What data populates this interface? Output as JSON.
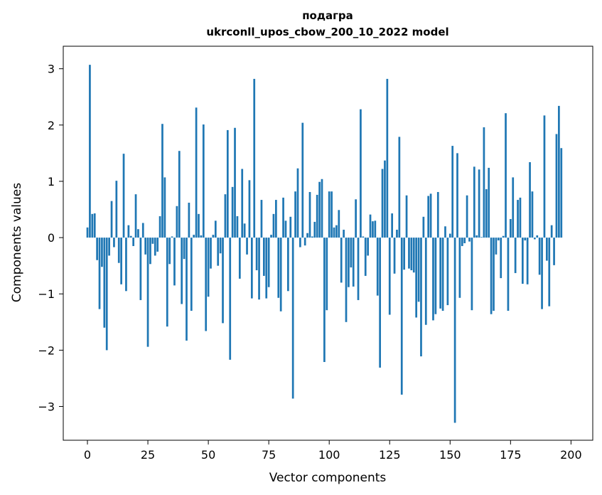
{
  "chart_data": {
    "type": "bar",
    "title_line1": "подагра",
    "title_line2": "ukrconll_upos_cbow_200_10_2022 model",
    "xlabel": "Vector components",
    "ylabel": "Components values",
    "xlim": [
      -10,
      209
    ],
    "ylim": [
      -3.6,
      3.4
    ],
    "xticks": [
      0,
      25,
      50,
      75,
      100,
      125,
      150,
      175,
      200
    ],
    "yticks": [
      -3,
      -2,
      -1,
      0,
      1,
      2,
      3
    ],
    "ytick_labels": [
      "−3",
      "−2",
      "−1",
      "0",
      "1",
      "2",
      "3"
    ],
    "bar_color": "#1f77b4",
    "grid": false,
    "values": [
      0.18,
      3.07,
      0.42,
      0.43,
      -0.4,
      -1.27,
      -0.52,
      -1.6,
      -2.0,
      -0.32,
      0.65,
      -0.17,
      1.01,
      -0.45,
      -0.83,
      1.49,
      -0.95,
      0.22,
      0.03,
      -0.15,
      0.77,
      0.15,
      -1.11,
      0.26,
      -0.3,
      -1.94,
      -0.47,
      -0.11,
      -0.32,
      -0.25,
      0.38,
      2.02,
      1.07,
      -1.58,
      -0.47,
      0.02,
      -0.85,
      0.56,
      1.54,
      -1.18,
      -0.38,
      -1.83,
      0.62,
      -1.3,
      0.05,
      2.31,
      0.42,
      0.04,
      2.01,
      -1.66,
      -1.05,
      -0.55,
      0.05,
      0.3,
      -0.5,
      -0.28,
      -1.52,
      0.77,
      1.91,
      -2.17,
      0.9,
      1.95,
      0.38,
      -0.73,
      1.22,
      0.25,
      -0.3,
      1.02,
      -1.08,
      2.82,
      -0.58,
      -1.1,
      0.67,
      -0.68,
      -1.08,
      -0.88,
      0.05,
      0.42,
      0.67,
      -1.07,
      -1.31,
      0.71,
      0.3,
      -0.95,
      0.37,
      -2.86,
      0.82,
      1.23,
      -0.17,
      2.04,
      -0.14,
      0.08,
      0.81,
      0.02,
      0.28,
      0.76,
      0.99,
      1.04,
      -2.21,
      -1.29,
      0.82,
      0.82,
      0.18,
      0.22,
      0.49,
      -0.8,
      0.14,
      -1.5,
      -0.88,
      -0.53,
      -0.87,
      0.68,
      -1.11,
      2.28,
      0.02,
      -0.68,
      -0.32,
      0.41,
      0.29,
      0.3,
      -1.03,
      -2.31,
      1.22,
      1.37,
      2.82,
      -1.37,
      0.43,
      -0.64,
      0.14,
      1.79,
      -2.79,
      -0.57,
      0.75,
      -0.55,
      -0.58,
      -0.62,
      -1.42,
      -1.14,
      -2.11,
      0.37,
      -1.55,
      0.74,
      0.78,
      -1.47,
      -1.36,
      0.81,
      -1.26,
      -1.3,
      0.2,
      -1.2,
      0.07,
      1.63,
      -3.29,
      1.5,
      -1.07,
      -0.15,
      -0.1,
      0.75,
      -0.07,
      -1.29,
      1.26,
      0.04,
      1.21,
      0.01,
      1.96,
      0.86,
      1.24,
      -1.36,
      -1.3,
      -0.3,
      -0.05,
      -0.72,
      0.03,
      2.21,
      -1.3,
      0.33,
      1.07,
      -0.63,
      0.67,
      0.71,
      -0.82,
      -0.05,
      -0.83,
      1.34,
      0.82,
      -0.03,
      0.04,
      -0.66,
      -1.27,
      2.17,
      -0.41,
      -1.22,
      0.22,
      -0.49,
      1.84,
      2.34,
      1.59
    ]
  }
}
